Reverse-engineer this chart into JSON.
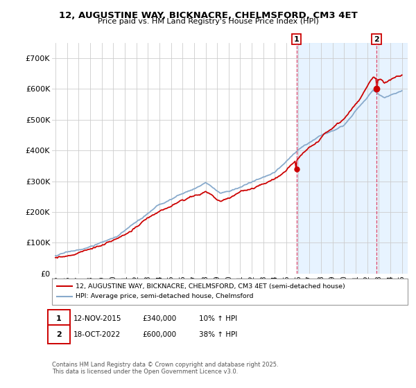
{
  "title": "12, AUGUSTINE WAY, BICKNACRE, CHELMSFORD, CM3 4ET",
  "subtitle": "Price paid vs. HM Land Registry's House Price Index (HPI)",
  "legend_line1": "12, AUGUSTINE WAY, BICKNACRE, CHELMSFORD, CM3 4ET (semi-detached house)",
  "legend_line2": "HPI: Average price, semi-detached house, Chelmsford",
  "annotation1_date": "12-NOV-2015",
  "annotation1_price": "£340,000",
  "annotation1_hpi": "10% ↑ HPI",
  "annotation1_year": 2015.87,
  "annotation1_value": 340000,
  "annotation2_date": "18-OCT-2022",
  "annotation2_price": "£600,000",
  "annotation2_hpi": "38% ↑ HPI",
  "annotation2_year": 2022.8,
  "annotation2_value": 600000,
  "yticks": [
    0,
    100000,
    200000,
    300000,
    400000,
    500000,
    600000,
    700000
  ],
  "ytick_labels": [
    "£0",
    "£100K",
    "£200K",
    "£300K",
    "£400K",
    "£500K",
    "£600K",
    "£700K"
  ],
  "ylim": [
    0,
    750000
  ],
  "xlim_start": 1994.7,
  "xlim_end": 2025.5,
  "footnote": "Contains HM Land Registry data © Crown copyright and database right 2025.\nThis data is licensed under the Open Government Licence v3.0.",
  "red_color": "#cc0000",
  "blue_color": "#88aacc",
  "blue_fill_color": "#ddeeff",
  "vline_color": "#dd4466",
  "span_color": "#ddeeff",
  "background_color": "#ffffff",
  "grid_color": "#cccccc"
}
